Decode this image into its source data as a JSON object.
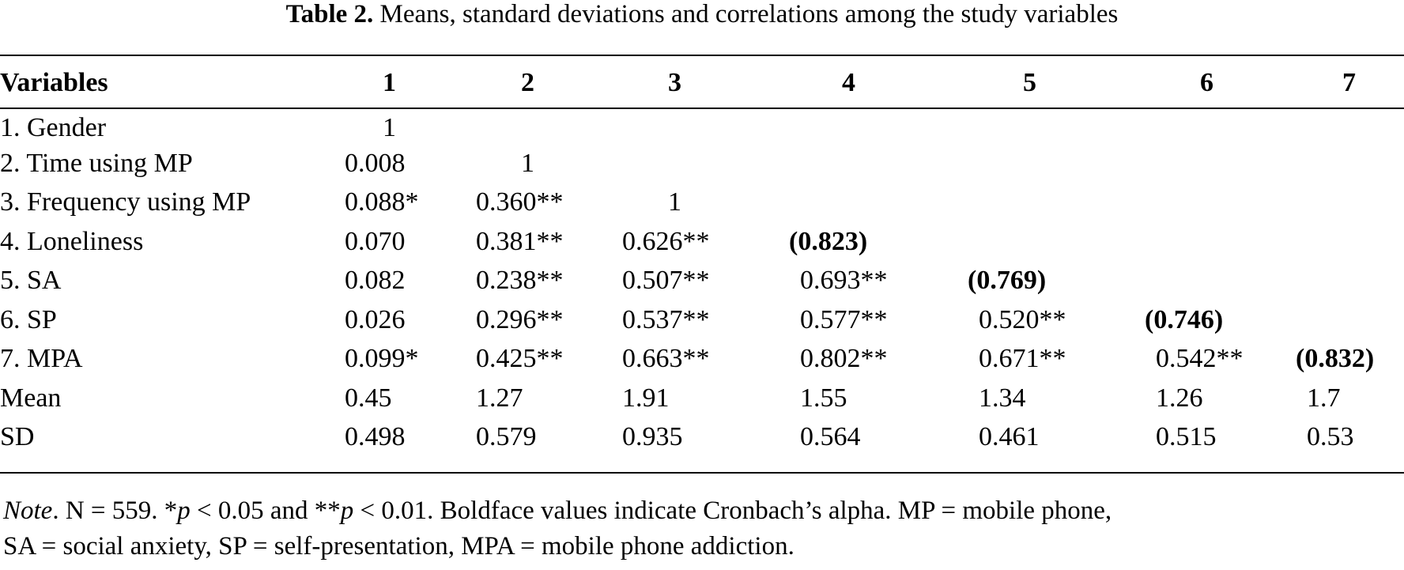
{
  "caption": {
    "label": "Table 2.",
    "text": "Means, standard deviations and correlations among the study variables"
  },
  "table": {
    "headers": [
      "Variables",
      "1",
      "2",
      "3",
      "4",
      "5",
      "6",
      "7"
    ],
    "rows": [
      [
        "1. Gender",
        "1",
        "",
        "",
        "",
        "",
        "",
        ""
      ],
      [
        "2. Time using MP",
        "0.008",
        "1",
        "",
        "",
        "",
        "",
        ""
      ],
      [
        "3. Frequency using MP",
        "0.088*",
        "0.360**",
        "1",
        "",
        "",
        "",
        ""
      ],
      [
        "4. Loneliness",
        "0.070",
        "0.381**",
        "0.626**",
        "(0.823)",
        "",
        "",
        ""
      ],
      [
        "5. SA",
        "0.082",
        "0.238**",
        "0.507**",
        "0.693**",
        "(0.769)",
        "",
        ""
      ],
      [
        "6. SP",
        "0.026",
        "0.296**",
        "0.537**",
        "0.577**",
        "0.520**",
        "(0.746)",
        ""
      ],
      [
        "7. MPA",
        "0.099*",
        "0.425**",
        "0.663**",
        "0.802**",
        "0.671**",
        "0.542**",
        "(0.832)"
      ],
      [
        "Mean",
        "0.45",
        "1.27",
        "1.91",
        "1.55",
        "1.34",
        "1.26",
        "1.7"
      ],
      [
        "SD",
        "0.498",
        "0.579",
        "0.935",
        "0.564",
        "0.461",
        "0.515",
        "0.53"
      ]
    ]
  },
  "note": {
    "label": "Note",
    "line1_a": ". N = 559. *",
    "p1": "p",
    "line1_b": " < 0.05 and **",
    "p2": "p",
    "line1_c": " < 0.01. Boldface values indicate Cronbach’s alpha. MP = mobile phone,",
    "line2": "SA = social anxiety, SP = self-presentation, MPA = mobile phone addiction."
  }
}
